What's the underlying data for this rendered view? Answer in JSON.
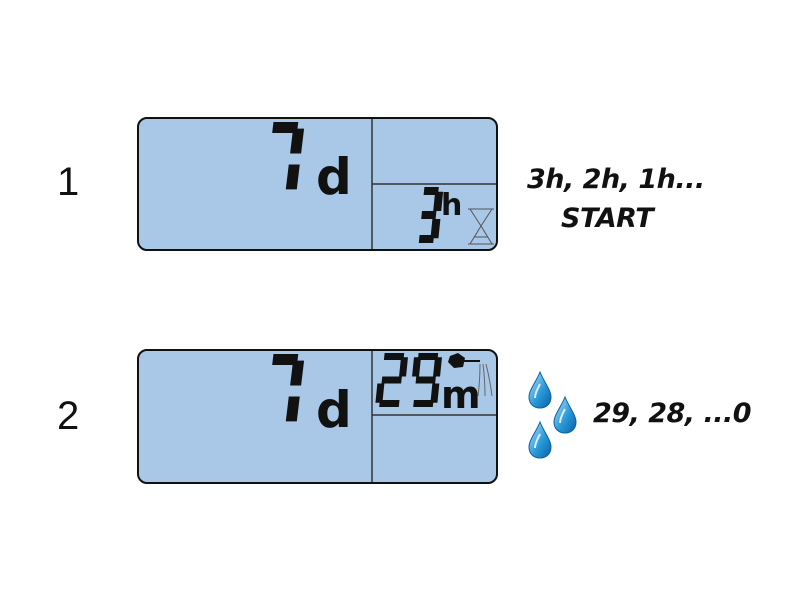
{
  "lcd_color": "#a9c8e8",
  "drop_color": "#2a9ad8",
  "steps": [
    {
      "number": "1",
      "main_digit": "7",
      "main_unit": "d",
      "sub_digit": "3",
      "sub_unit": "h",
      "sub_icon": "hourglass-icon",
      "note_lines": [
        "3h, 2h, 1h...",
        "START"
      ]
    },
    {
      "number": "2",
      "main_digit": "7",
      "main_unit": "d",
      "sub_digit": "29",
      "sub_unit": "m",
      "sub_icon": "watering-can-icon",
      "side_icon": "water-drops-icon",
      "note_lines": [
        "29, 28, ...0"
      ]
    }
  ]
}
